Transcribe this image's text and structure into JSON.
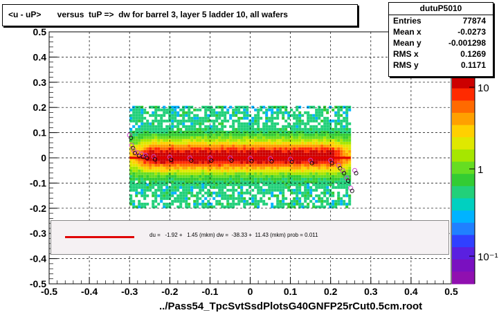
{
  "title": "<u - uP>       versus  tuP =>  dw for barrel 3, layer 5 ladder 10, all wafers",
  "stats": {
    "name": "dutuP5010",
    "rows": [
      {
        "label": "Entries",
        "value": "77874"
      },
      {
        "label": "Mean x",
        "value": "-0.0273"
      },
      {
        "label": "Mean y",
        "value": "-0.001298"
      },
      {
        "label": "RMS x",
        "value": "0.1269"
      },
      {
        "label": "RMS y",
        "value": "0.1171"
      }
    ]
  },
  "fit_text": "du =   -1.92 +   1.45 (mkm) dw =  -38.33 +  11.43 (mkm) prob = 0.011",
  "x_title": "../Pass54_TpcSvtSsdPlotsG40GNFP25rCut0.5cm.root",
  "colors": {
    "fit_line": "#e00000",
    "frame": "#000000"
  },
  "chart_data": {
    "type": "heatmap",
    "xlim": [
      -0.5,
      0.5
    ],
    "ylim": [
      -0.5,
      0.5
    ],
    "x_ticks": [
      "-0.5",
      "-0.4",
      "-0.3",
      "-0.2",
      "-0.1",
      "0",
      "0.1",
      "0.2",
      "0.3",
      "0.4",
      "0.5"
    ],
    "y_ticks": [
      "-0.5",
      "-0.4",
      "-0.3",
      "-0.2",
      "-0.1",
      "0",
      "0.1",
      "0.2",
      "0.3",
      "0.4",
      "0.5"
    ],
    "z_scale": "log",
    "z_ticks": [
      "10",
      "1",
      "10⁻¹"
    ],
    "grid": true,
    "band": {
      "x_min": -0.3,
      "x_max": 0.25,
      "core_half_width": 0.02,
      "mid_half_width": 0.08,
      "outer_half_width": 0.2
    },
    "fit_line": {
      "x": [
        -0.3,
        0.25
      ],
      "y": [
        0.0,
        0.0
      ]
    },
    "profile_points": [
      {
        "x": -0.3,
        "y": 0.09
      },
      {
        "x": -0.295,
        "y": 0.05
      },
      {
        "x": -0.29,
        "y": 0.03
      },
      {
        "x": -0.28,
        "y": 0.02
      },
      {
        "x": -0.27,
        "y": 0.015
      },
      {
        "x": -0.26,
        "y": 0.01
      },
      {
        "x": -0.24,
        "y": 0.005
      },
      {
        "x": -0.2,
        "y": 0.003
      },
      {
        "x": -0.15,
        "y": 0.0
      },
      {
        "x": -0.1,
        "y": 0.0
      },
      {
        "x": -0.05,
        "y": 0.0
      },
      {
        "x": 0.0,
        "y": -0.002
      },
      {
        "x": 0.05,
        "y": -0.003
      },
      {
        "x": 0.1,
        "y": -0.005
      },
      {
        "x": 0.15,
        "y": -0.01
      },
      {
        "x": 0.2,
        "y": -0.01
      },
      {
        "x": 0.22,
        "y": -0.03
      },
      {
        "x": 0.23,
        "y": -0.05
      },
      {
        "x": 0.24,
        "y": -0.08
      },
      {
        "x": 0.25,
        "y": -0.12
      },
      {
        "x": 0.26,
        "y": -0.05
      }
    ]
  }
}
